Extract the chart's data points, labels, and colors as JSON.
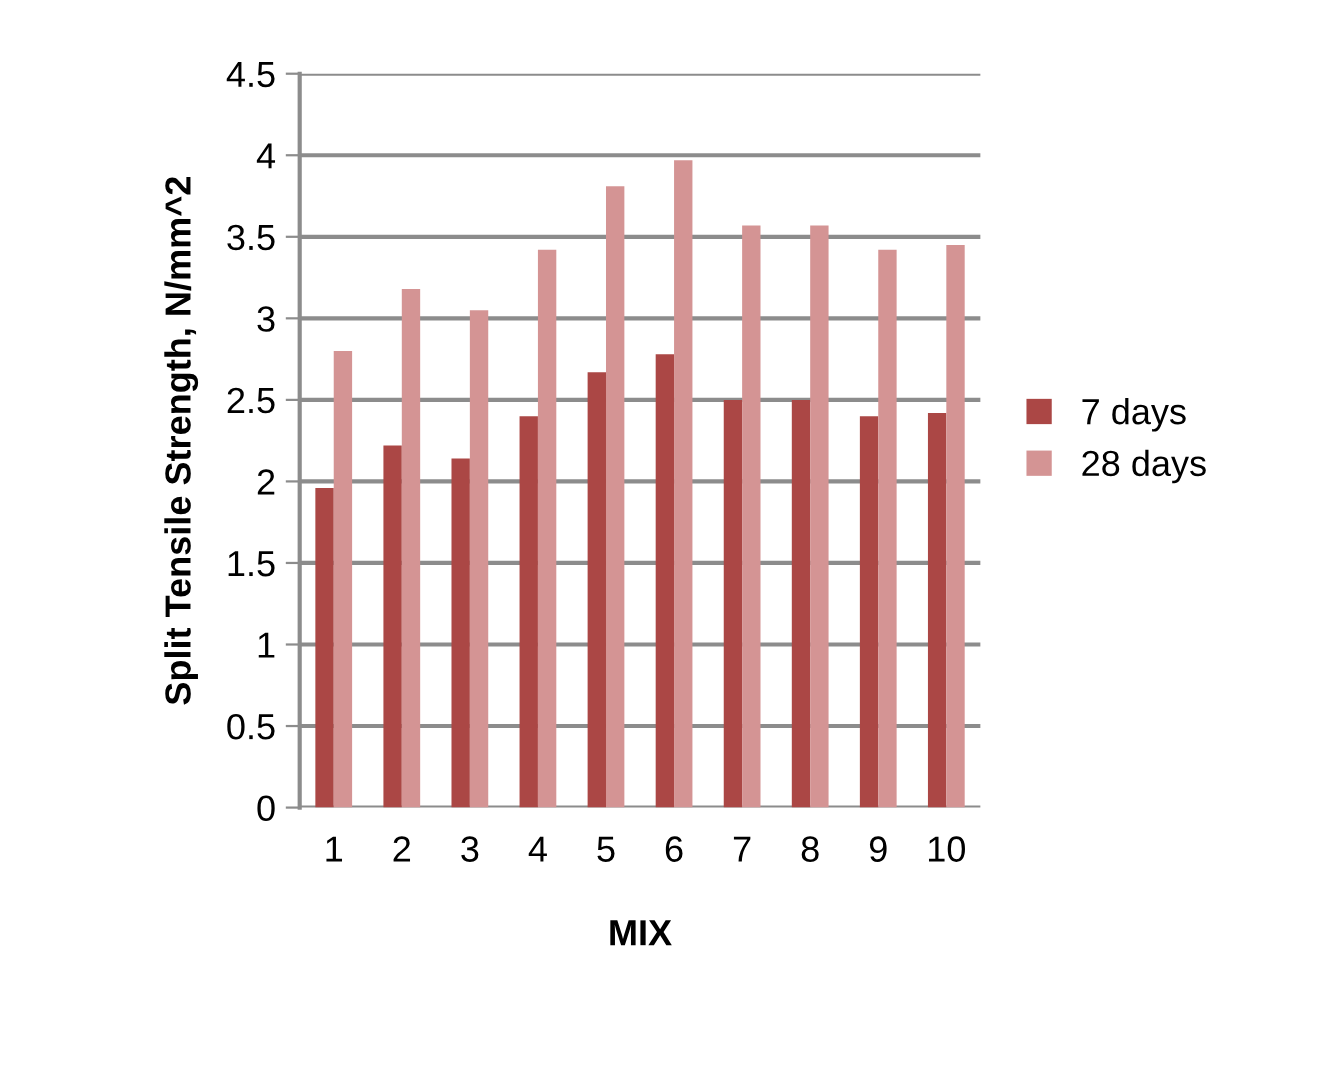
{
  "chart_data": {
    "type": "bar",
    "xlabel": "MIX",
    "ylabel": "Split Tensile Strength, N/mm^2",
    "categories": [
      "1",
      "2",
      "3",
      "4",
      "5",
      "6",
      "7",
      "8",
      "9",
      "10"
    ],
    "series": [
      {
        "name": "7 days",
        "color": "#ab4745",
        "values": [
          1.96,
          2.22,
          2.14,
          2.4,
          2.67,
          2.78,
          2.5,
          2.5,
          2.4,
          2.42
        ]
      },
      {
        "name": "28 days",
        "color": "#d49494",
        "values": [
          2.8,
          3.18,
          3.05,
          3.42,
          3.81,
          3.97,
          3.57,
          3.57,
          3.42,
          3.45
        ]
      }
    ],
    "ylim": [
      0,
      4.5
    ],
    "yticks": [
      0,
      0.5,
      1,
      1.5,
      2,
      2.5,
      3,
      3.5,
      4,
      4.5
    ],
    "grid": "y",
    "legend": "right"
  }
}
